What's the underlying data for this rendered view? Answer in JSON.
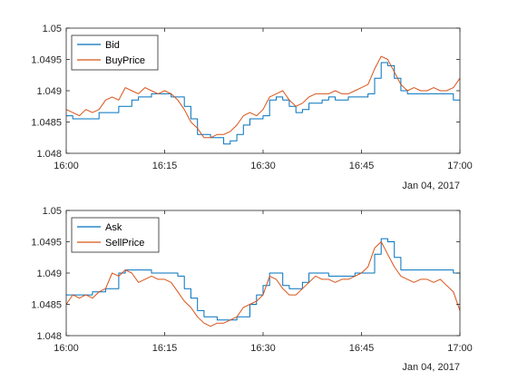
{
  "chart_data": [
    {
      "type": "line",
      "title": "",
      "xlabel": "",
      "ylabel": "",
      "x_ticks": [
        "16:00",
        "16:15",
        "16:30",
        "16:45",
        "17:00"
      ],
      "x_range": [
        "16:00",
        "17:00"
      ],
      "date_label": "Jan 04, 2017",
      "y_ticks": [
        "1.048",
        "1.0485",
        "1.049",
        "1.0495",
        "1.05"
      ],
      "ylim": [
        1.048,
        1.05
      ],
      "grid": false,
      "legend_position": "top-left",
      "series": [
        {
          "name": "Bid",
          "color": "#0072BD",
          "step": true,
          "points": [
            [
              "16:00",
              1.0486
            ],
            [
              "16:01",
              1.04855
            ],
            [
              "16:04",
              1.04855
            ],
            [
              "16:05",
              1.04865
            ],
            [
              "16:08",
              1.04875
            ],
            [
              "16:10",
              1.04885
            ],
            [
              "16:11",
              1.0489
            ],
            [
              "16:13",
              1.04895
            ],
            [
              "16:16",
              1.0489
            ],
            [
              "16:18",
              1.04875
            ],
            [
              "16:19",
              1.04855
            ],
            [
              "16:20",
              1.0483
            ],
            [
              "16:22",
              1.04825
            ],
            [
              "16:24",
              1.04815
            ],
            [
              "16:25",
              1.0482
            ],
            [
              "16:26",
              1.0483
            ],
            [
              "16:27",
              1.04845
            ],
            [
              "16:28",
              1.04855
            ],
            [
              "16:30",
              1.0486
            ],
            [
              "16:31",
              1.04885
            ],
            [
              "16:32",
              1.0489
            ],
            [
              "16:33",
              1.04885
            ],
            [
              "16:34",
              1.04875
            ],
            [
              "16:35",
              1.04865
            ],
            [
              "16:36",
              1.0487
            ],
            [
              "16:37",
              1.0488
            ],
            [
              "16:39",
              1.04885
            ],
            [
              "16:40",
              1.0489
            ],
            [
              "16:41",
              1.04885
            ],
            [
              "16:43",
              1.0489
            ],
            [
              "16:46",
              1.04895
            ],
            [
              "16:47",
              1.0492
            ],
            [
              "16:48",
              1.04945
            ],
            [
              "16:49",
              1.0494
            ],
            [
              "16:50",
              1.0492
            ],
            [
              "16:51",
              1.049
            ],
            [
              "16:52",
              1.04895
            ],
            [
              "16:55",
              1.04895
            ],
            [
              "16:57",
              1.04895
            ],
            [
              "16:58",
              1.04895
            ],
            [
              "16:59",
              1.04885
            ],
            [
              "17:00",
              1.04885
            ]
          ]
        },
        {
          "name": "BuyPrice",
          "color": "#D95319",
          "step": false,
          "points": [
            [
              "16:00",
              1.0487
            ],
            [
              "16:01",
              1.04865
            ],
            [
              "16:02",
              1.0486
            ],
            [
              "16:03",
              1.0487
            ],
            [
              "16:04",
              1.04865
            ],
            [
              "16:05",
              1.0487
            ],
            [
              "16:06",
              1.04885
            ],
            [
              "16:07",
              1.0489
            ],
            [
              "16:08",
              1.04885
            ],
            [
              "16:09",
              1.04905
            ],
            [
              "16:10",
              1.049
            ],
            [
              "16:11",
              1.04895
            ],
            [
              "16:12",
              1.04905
            ],
            [
              "16:13",
              1.049
            ],
            [
              "16:14",
              1.04895
            ],
            [
              "16:15",
              1.049
            ],
            [
              "16:16",
              1.04895
            ],
            [
              "16:17",
              1.04885
            ],
            [
              "16:18",
              1.0487
            ],
            [
              "16:19",
              1.0485
            ],
            [
              "16:20",
              1.0484
            ],
            [
              "16:21",
              1.04825
            ],
            [
              "16:22",
              1.04825
            ],
            [
              "16:23",
              1.0483
            ],
            [
              "16:24",
              1.0483
            ],
            [
              "16:25",
              1.04835
            ],
            [
              "16:26",
              1.04845
            ],
            [
              "16:27",
              1.0486
            ],
            [
              "16:28",
              1.04865
            ],
            [
              "16:29",
              1.0486
            ],
            [
              "16:30",
              1.0487
            ],
            [
              "16:31",
              1.0489
            ],
            [
              "16:32",
              1.04895
            ],
            [
              "16:33",
              1.049
            ],
            [
              "16:34",
              1.04885
            ],
            [
              "16:35",
              1.04875
            ],
            [
              "16:36",
              1.0488
            ],
            [
              "16:37",
              1.0489
            ],
            [
              "16:38",
              1.04895
            ],
            [
              "16:39",
              1.04895
            ],
            [
              "16:40",
              1.04895
            ],
            [
              "16:41",
              1.049
            ],
            [
              "16:42",
              1.04895
            ],
            [
              "16:43",
              1.04895
            ],
            [
              "16:44",
              1.049
            ],
            [
              "16:45",
              1.04905
            ],
            [
              "16:46",
              1.0491
            ],
            [
              "16:47",
              1.04935
            ],
            [
              "16:48",
              1.04955
            ],
            [
              "16:49",
              1.0495
            ],
            [
              "16:50",
              1.0493
            ],
            [
              "16:51",
              1.0491
            ],
            [
              "16:52",
              1.049
            ],
            [
              "16:53",
              1.04905
            ],
            [
              "16:54",
              1.049
            ],
            [
              "16:55",
              1.049
            ],
            [
              "16:56",
              1.04905
            ],
            [
              "16:57",
              1.049
            ],
            [
              "16:58",
              1.049
            ],
            [
              "16:59",
              1.04905
            ],
            [
              "17:00",
              1.0492
            ]
          ]
        }
      ]
    },
    {
      "type": "line",
      "title": "",
      "xlabel": "",
      "ylabel": "",
      "x_ticks": [
        "16:00",
        "16:15",
        "16:30",
        "16:45",
        "17:00"
      ],
      "x_range": [
        "16:00",
        "17:00"
      ],
      "date_label": "Jan 04, 2017",
      "y_ticks": [
        "1.048",
        "1.0485",
        "1.049",
        "1.0495",
        "1.05"
      ],
      "ylim": [
        1.048,
        1.05
      ],
      "grid": false,
      "legend_position": "top-left",
      "series": [
        {
          "name": "Ask",
          "color": "#0072BD",
          "step": true,
          "points": [
            [
              "16:00",
              1.04865
            ],
            [
              "16:02",
              1.04865
            ],
            [
              "16:04",
              1.0487
            ],
            [
              "16:06",
              1.04875
            ],
            [
              "16:08",
              1.049
            ],
            [
              "16:09",
              1.04905
            ],
            [
              "16:11",
              1.04905
            ],
            [
              "16:13",
              1.049
            ],
            [
              "16:15",
              1.049
            ],
            [
              "16:17",
              1.04895
            ],
            [
              "16:18",
              1.04875
            ],
            [
              "16:19",
              1.0486
            ],
            [
              "16:20",
              1.0484
            ],
            [
              "16:21",
              1.0483
            ],
            [
              "16:23",
              1.04825
            ],
            [
              "16:25",
              1.04825
            ],
            [
              "16:26",
              1.0483
            ],
            [
              "16:28",
              1.0485
            ],
            [
              "16:29",
              1.04865
            ],
            [
              "16:30",
              1.0488
            ],
            [
              "16:31",
              1.049
            ],
            [
              "16:32",
              1.049
            ],
            [
              "16:33",
              1.0488
            ],
            [
              "16:34",
              1.04875
            ],
            [
              "16:35",
              1.04875
            ],
            [
              "16:36",
              1.04885
            ],
            [
              "16:37",
              1.049
            ],
            [
              "16:39",
              1.049
            ],
            [
              "16:40",
              1.04895
            ],
            [
              "16:42",
              1.04895
            ],
            [
              "16:44",
              1.049
            ],
            [
              "16:46",
              1.049
            ],
            [
              "16:47",
              1.0493
            ],
            [
              "16:48",
              1.04955
            ],
            [
              "16:49",
              1.0495
            ],
            [
              "16:50",
              1.04925
            ],
            [
              "16:51",
              1.04905
            ],
            [
              "16:52",
              1.04905
            ],
            [
              "16:55",
              1.04905
            ],
            [
              "16:57",
              1.04905
            ],
            [
              "16:59",
              1.049
            ],
            [
              "17:00",
              1.0489
            ]
          ]
        },
        {
          "name": "SellPrice",
          "color": "#D95319",
          "step": false,
          "points": [
            [
              "16:00",
              1.0485
            ],
            [
              "16:01",
              1.04865
            ],
            [
              "16:02",
              1.0486
            ],
            [
              "16:03",
              1.04865
            ],
            [
              "16:04",
              1.0486
            ],
            [
              "16:05",
              1.0487
            ],
            [
              "16:06",
              1.04875
            ],
            [
              "16:07",
              1.049
            ],
            [
              "16:08",
              1.04895
            ],
            [
              "16:09",
              1.04905
            ],
            [
              "16:10",
              1.049
            ],
            [
              "16:11",
              1.04885
            ],
            [
              "16:12",
              1.0489
            ],
            [
              "16:13",
              1.04895
            ],
            [
              "16:14",
              1.0489
            ],
            [
              "16:15",
              1.0489
            ],
            [
              "16:16",
              1.04885
            ],
            [
              "16:17",
              1.0487
            ],
            [
              "16:18",
              1.04855
            ],
            [
              "16:19",
              1.04845
            ],
            [
              "16:20",
              1.0483
            ],
            [
              "16:21",
              1.0482
            ],
            [
              "16:22",
              1.04815
            ],
            [
              "16:23",
              1.0482
            ],
            [
              "16:24",
              1.0482
            ],
            [
              "16:25",
              1.04825
            ],
            [
              "16:26",
              1.0483
            ],
            [
              "16:27",
              1.04845
            ],
            [
              "16:28",
              1.0485
            ],
            [
              "16:29",
              1.04855
            ],
            [
              "16:30",
              1.04865
            ],
            [
              "16:31",
              1.04895
            ],
            [
              "16:32",
              1.0489
            ],
            [
              "16:33",
              1.04875
            ],
            [
              "16:34",
              1.04865
            ],
            [
              "16:35",
              1.04865
            ],
            [
              "16:36",
              1.04875
            ],
            [
              "16:37",
              1.04885
            ],
            [
              "16:38",
              1.04895
            ],
            [
              "16:39",
              1.0489
            ],
            [
              "16:40",
              1.0489
            ],
            [
              "16:41",
              1.04885
            ],
            [
              "16:42",
              1.0489
            ],
            [
              "16:43",
              1.0489
            ],
            [
              "16:44",
              1.04895
            ],
            [
              "16:45",
              1.049
            ],
            [
              "16:46",
              1.0491
            ],
            [
              "16:47",
              1.0494
            ],
            [
              "16:48",
              1.0495
            ],
            [
              "16:49",
              1.0493
            ],
            [
              "16:50",
              1.0491
            ],
            [
              "16:51",
              1.04895
            ],
            [
              "16:52",
              1.0489
            ],
            [
              "16:53",
              1.04885
            ],
            [
              "16:54",
              1.0489
            ],
            [
              "16:55",
              1.0489
            ],
            [
              "16:56",
              1.04885
            ],
            [
              "16:57",
              1.0489
            ],
            [
              "16:58",
              1.0488
            ],
            [
              "16:59",
              1.0487
            ],
            [
              "17:00",
              1.0484
            ]
          ]
        }
      ]
    }
  ]
}
